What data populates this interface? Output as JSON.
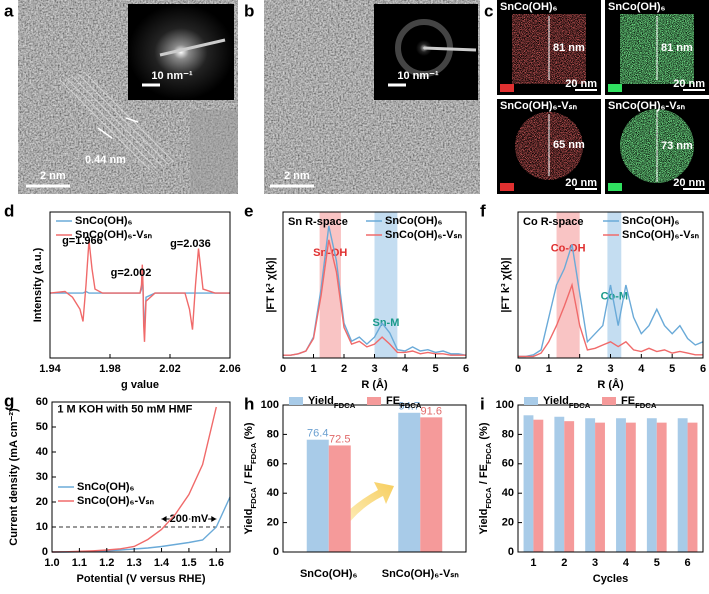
{
  "panels": {
    "a": {
      "letter": "a",
      "lattice": "0.44 nm",
      "scale": "2 nm",
      "inset_scale": "10 nm⁻¹"
    },
    "b": {
      "letter": "b",
      "scale": "2 nm",
      "inset_scale": "10 nm⁻¹"
    },
    "c": {
      "letter": "c",
      "maps": [
        {
          "title": "SnCo(OH)₆",
          "size": "81 nm",
          "scale": "20 nm",
          "color": "#e03030"
        },
        {
          "title": "SnCo(OH)₆",
          "size": "81 nm",
          "scale": "20 nm",
          "color": "#30e060"
        },
        {
          "title": "SnCo(OH)₆-Vₛₙ",
          "size": "65 nm",
          "scale": "20 nm",
          "color": "#e03030"
        },
        {
          "title": "SnCo(OH)₆-Vₛₙ",
          "size": "73 nm",
          "scale": "20 nm",
          "color": "#30e060"
        }
      ]
    }
  },
  "chart_data": [
    {
      "type": "line",
      "panel": "d",
      "x": [
        1.94,
        1.95,
        1.955,
        1.96,
        1.962,
        1.964,
        1.966,
        1.968,
        1.97,
        1.975,
        1.98,
        1.99,
        2.0,
        2.001,
        2.0015,
        2.002,
        2.0025,
        2.003,
        2.004,
        2.01,
        2.02,
        2.03,
        2.033,
        2.035,
        2.037,
        2.039,
        2.042,
        2.05,
        2.06
      ],
      "xlim": [
        1.94,
        2.06
      ],
      "xticks": [
        1.94,
        1.98,
        2.02,
        2.06
      ],
      "ylim": [
        -0.8,
        1.0
      ],
      "xlabel": "g value",
      "ylabel": "Intensity (a.u.)",
      "legend": "upper left",
      "annotations": [
        "g=1.966",
        "g=2.002",
        "g=2.036"
      ],
      "series": [
        {
          "name": "SnCo(OH)₆",
          "color": "#6aaad8",
          "values": [
            0,
            0,
            0,
            0,
            0,
            0.02,
            0,
            0,
            0,
            0,
            0,
            0,
            0,
            0.05,
            0.3,
            0.05,
            -0.3,
            -0.45,
            -0.05,
            0,
            0,
            0,
            0,
            0,
            0,
            0,
            0,
            0,
            0
          ]
        },
        {
          "name": "SnCo(OH)₆-Vₛₙ",
          "color": "#f06a6a",
          "values": [
            0,
            0.02,
            -0.05,
            -0.2,
            -0.35,
            0.1,
            0.65,
            0.3,
            0.05,
            0,
            0,
            0,
            0,
            0.1,
            0.35,
            0.1,
            -0.4,
            -0.6,
            -0.1,
            0,
            0,
            0,
            -0.2,
            -0.45,
            0.1,
            0.55,
            0.05,
            0,
            0
          ]
        }
      ]
    },
    {
      "type": "line",
      "panel": "e",
      "title": "Sn R-space",
      "x": [
        0,
        0.25,
        0.5,
        0.75,
        1,
        1.25,
        1.5,
        1.75,
        2,
        2.25,
        2.5,
        2.75,
        3,
        3.25,
        3.5,
        3.75,
        4,
        4.25,
        4.5,
        4.75,
        5,
        5.25,
        5.5,
        5.75,
        6
      ],
      "xlim": [
        0,
        6
      ],
      "xticks": [
        0,
        1,
        2,
        3,
        4,
        5,
        6
      ],
      "ylim": [
        0,
        1.05
      ],
      "xlabel": "R (Å)",
      "ylabel": "|FT k³ χ(k)|",
      "legend": "upper right",
      "bands": [
        {
          "range": [
            1.2,
            1.9
          ],
          "color": "#f7b5b5",
          "label": "Sn-OH",
          "label_color": "#e03030"
        },
        {
          "range": [
            3.0,
            3.75
          ],
          "color": "#b5d5ee",
          "label": "Sn-M",
          "label_color": "#1a9a8a"
        }
      ],
      "series": [
        {
          "name": "SnCo(OH)₆",
          "color": "#6aaad8",
          "values": [
            0.02,
            0.02,
            0.03,
            0.05,
            0.15,
            0.5,
            0.95,
            0.7,
            0.25,
            0.12,
            0.15,
            0.1,
            0.15,
            0.25,
            0.18,
            0.06,
            0.05,
            0.08,
            0.05,
            0.06,
            0.04,
            0.05,
            0.03,
            0.03,
            0.02
          ]
        },
        {
          "name": "SnCo(OH)₆-Vₛₙ",
          "color": "#f06a6a",
          "values": [
            0.02,
            0.02,
            0.03,
            0.05,
            0.14,
            0.45,
            0.85,
            0.62,
            0.22,
            0.1,
            0.12,
            0.08,
            0.1,
            0.15,
            0.1,
            0.04,
            0.04,
            0.05,
            0.03,
            0.04,
            0.03,
            0.03,
            0.02,
            0.02,
            0.02
          ]
        }
      ]
    },
    {
      "type": "line",
      "panel": "f",
      "title": "Co R-space",
      "x": [
        0,
        0.25,
        0.5,
        0.75,
        1,
        1.25,
        1.5,
        1.75,
        2,
        2.25,
        2.5,
        2.75,
        3,
        3.25,
        3.5,
        3.75,
        4,
        4.25,
        4.5,
        4.75,
        5,
        5.25,
        5.5,
        5.75,
        6
      ],
      "xlim": [
        0,
        6
      ],
      "xticks": [
        0,
        1,
        2,
        3,
        4,
        5,
        6
      ],
      "ylim": [
        0,
        0.9
      ],
      "xlabel": "R (Å)",
      "ylabel": "|FT k³ χ(k)|",
      "legend": "upper right",
      "bands": [
        {
          "range": [
            1.25,
            2.0
          ],
          "color": "#f7b5b5",
          "label": "Co-OH",
          "label_color": "#e03030"
        },
        {
          "range": [
            2.9,
            3.35
          ],
          "color": "#b5d5ee",
          "label": "Co-M",
          "label_color": "#1a9a8a"
        }
      ],
      "series": [
        {
          "name": "SnCo(OH)₆",
          "color": "#6aaad8",
          "values": [
            0.01,
            0.01,
            0.02,
            0.05,
            0.25,
            0.45,
            0.55,
            0.7,
            0.4,
            0.1,
            0.15,
            0.2,
            0.45,
            0.2,
            0.45,
            0.25,
            0.15,
            0.2,
            0.3,
            0.2,
            0.15,
            0.2,
            0.12,
            0.08,
            0.1
          ]
        },
        {
          "name": "SnCo(OH)₆-Vₛₙ",
          "color": "#f06a6a",
          "values": [
            0.01,
            0.01,
            0.01,
            0.03,
            0.1,
            0.2,
            0.32,
            0.45,
            0.2,
            0.05,
            0.06,
            0.08,
            0.1,
            0.07,
            0.1,
            0.05,
            0.04,
            0.06,
            0.04,
            0.05,
            0.03,
            0.04,
            0.03,
            0.02,
            0.02
          ]
        }
      ]
    },
    {
      "type": "line",
      "panel": "g",
      "annotations": [
        "1 M KOH with 50 mM HMF"
      ],
      "x": [
        1.0,
        1.05,
        1.1,
        1.15,
        1.2,
        1.25,
        1.3,
        1.35,
        1.4,
        1.45,
        1.5,
        1.55,
        1.6,
        1.65
      ],
      "xlim": [
        1.0,
        1.65
      ],
      "xticks": [
        {
          "value": 1,
          "label": "1.0"
        },
        1.1,
        1.2,
        1.3,
        1.4,
        1.5,
        1.6
      ],
      "ylim": [
        0,
        60
      ],
      "yticks": [
        0,
        10,
        20,
        30,
        40,
        50,
        60
      ],
      "xlabel": "Potential (V versus RHE)",
      "ylabel": "Current density (mA cm⁻²)",
      "legend": "center left",
      "hline": 10,
      "gap": {
        "x": [
          1.4,
          1.6
        ],
        "label": "200 mV"
      },
      "series": [
        {
          "name": "SnCo(OH)₆",
          "color": "#6aaad8",
          "values": [
            0,
            0,
            0.1,
            0.3,
            0.5,
            0.8,
            1.2,
            1.6,
            2.2,
            3,
            3.8,
            4.8,
            10,
            22
          ]
        },
        {
          "name": "SnCo(OH)₆-Vₛₙ",
          "color": "#f06a6a",
          "values": [
            0,
            0.1,
            0.3,
            0.5,
            0.8,
            1.3,
            2.2,
            5,
            9,
            15,
            23,
            35,
            58,
            null
          ]
        }
      ]
    },
    {
      "type": "bar",
      "panel": "h",
      "categories": [
        "SnCo(OH)₆",
        "SnCo(OH)₆-Vₛₙ"
      ],
      "ylim": [
        0,
        100
      ],
      "yticks": [
        0,
        20,
        40,
        60,
        80,
        100
      ],
      "ylabel": [
        "Yield",
        "FDCA",
        " / FE",
        "FDCA",
        " (%)"
      ],
      "data_labels": true,
      "legend": "upper left",
      "series": [
        {
          "name": [
            "Yield",
            "FDCA"
          ],
          "color": "#a8cbe8",
          "label_color": "#6a9fd0",
          "values": [
            76.4,
            94.7
          ]
        },
        {
          "name": [
            "FE",
            "FDCA"
          ],
          "color": "#f59a9a",
          "label_color": "#e06a6a",
          "values": [
            72.5,
            91.6
          ]
        }
      ]
    },
    {
      "type": "bar",
      "panel": "i",
      "categories": [
        "1",
        "2",
        "3",
        "4",
        "5",
        "6"
      ],
      "ylim": [
        0,
        100
      ],
      "yticks": [
        0,
        20,
        40,
        60,
        80,
        100
      ],
      "xlabel": "Cycles",
      "ylabel": [
        "Yield",
        "FDCA",
        " / FE",
        "FDCA",
        " (%)"
      ],
      "data_labels": false,
      "legend": "upper left",
      "series": [
        {
          "name": [
            "Yield",
            "FDCA"
          ],
          "color": "#a8cbe8",
          "values": [
            93,
            92,
            91,
            91,
            91,
            91
          ]
        },
        {
          "name": [
            "FE",
            "FDCA"
          ],
          "color": "#f59a9a",
          "values": [
            90,
            89,
            88,
            88,
            88,
            88
          ]
        }
      ]
    }
  ]
}
